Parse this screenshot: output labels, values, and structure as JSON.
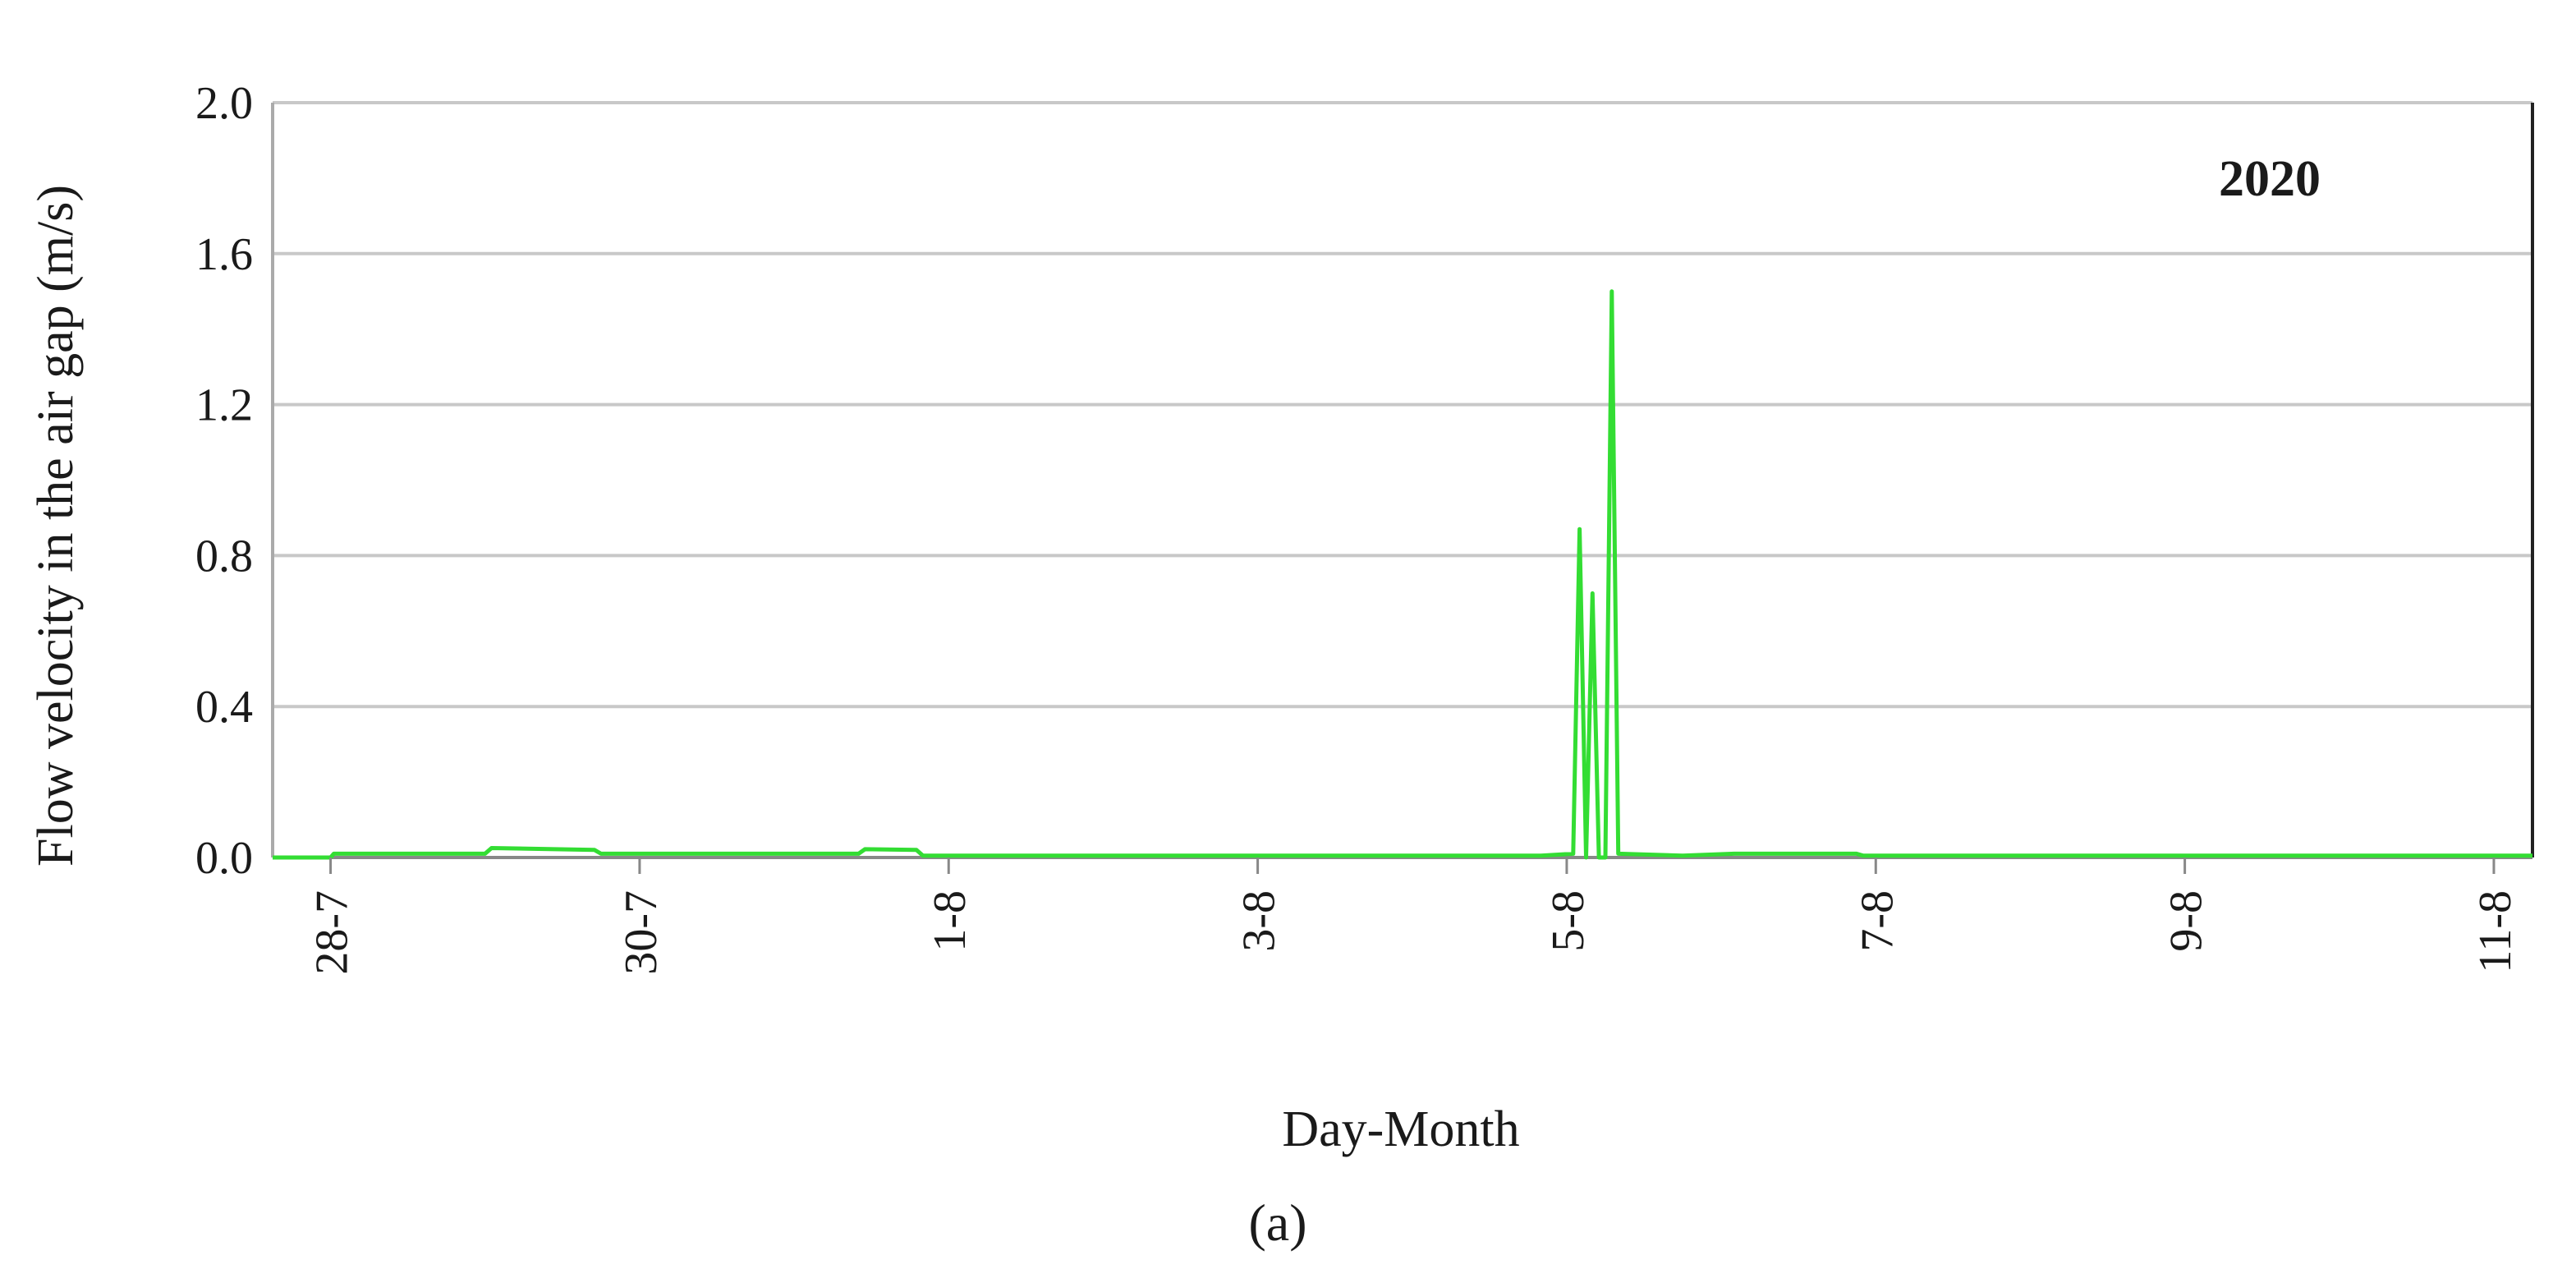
{
  "chart_data": {
    "type": "line",
    "title": "",
    "xlabel": "Day-Month",
    "ylabel": "Flow velocity in the air gap (m/s)",
    "ylim": [
      0,
      2.0
    ],
    "yticks": [
      "0.0",
      "0.4",
      "0.8",
      "1.2",
      "1.6",
      "2.0"
    ],
    "xlim": [
      "2020-07-27T15:00",
      "2020-08-11T06:00"
    ],
    "xticks": [
      {
        "label": "28-7",
        "date": "2020-07-28"
      },
      {
        "label": "30-7",
        "date": "2020-07-30"
      },
      {
        "label": "1-8",
        "date": "2020-08-01"
      },
      {
        "label": "3-8",
        "date": "2020-08-03"
      },
      {
        "label": "5-8",
        "date": "2020-08-05"
      },
      {
        "label": "7-8",
        "date": "2020-08-07"
      },
      {
        "label": "9-8",
        "date": "2020-08-09"
      },
      {
        "label": "11-8",
        "date": "2020-08-11"
      }
    ],
    "grid": true,
    "annotation": "2020",
    "panel_label": "(a)",
    "series": [
      {
        "color": "#33dd33",
        "points": [
          [
            "2020-07-27T15:00",
            0.0
          ],
          [
            "2020-07-28T00:00",
            0.0
          ],
          [
            "2020-07-28T00:30",
            0.01
          ],
          [
            "2020-07-29T00:00",
            0.01
          ],
          [
            "2020-07-29T01:00",
            0.025
          ],
          [
            "2020-07-29T17:00",
            0.02
          ],
          [
            "2020-07-29T18:00",
            0.01
          ],
          [
            "2020-07-31T10:00",
            0.01
          ],
          [
            "2020-07-31T11:00",
            0.022
          ],
          [
            "2020-07-31T19:00",
            0.02
          ],
          [
            "2020-07-31T20:00",
            0.005
          ],
          [
            "2020-08-04T20:00",
            0.005
          ],
          [
            "2020-08-05T01:00",
            0.01
          ],
          [
            "2020-08-05T02:00",
            0.87
          ],
          [
            "2020-08-05T03:00",
            0.0
          ],
          [
            "2020-08-05T04:00",
            0.7
          ],
          [
            "2020-08-05T05:00",
            0.0
          ],
          [
            "2020-08-05T06:00",
            0.0
          ],
          [
            "2020-08-05T07:00",
            1.5
          ],
          [
            "2020-08-05T08:00",
            0.01
          ],
          [
            "2020-08-05T18:00",
            0.005
          ],
          [
            "2020-08-06T02:00",
            0.01
          ],
          [
            "2020-08-06T21:00",
            0.01
          ],
          [
            "2020-08-06T22:00",
            0.005
          ],
          [
            "2020-08-11T06:00",
            0.005
          ]
        ]
      }
    ]
  }
}
